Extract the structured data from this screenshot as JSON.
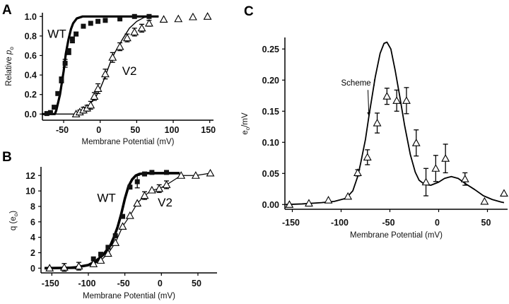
{
  "chart_data": [
    {
      "panel": "A",
      "type": "scatter",
      "xlabel": "Membrane Potential (mV)",
      "ylabel": {
        "main": "Relative ",
        "var": "p",
        "sub": "o"
      },
      "xlim": [
        -80,
        155
      ],
      "ylim": [
        0,
        1.05
      ],
      "xticks": [
        -50,
        0,
        50,
        100,
        150
      ],
      "yticks": [
        "0.0",
        "0.2",
        "0.4",
        "0.6",
        "0.8",
        "1.0"
      ],
      "annotations": [
        {
          "text": "WT",
          "x": -72,
          "y": 0.78
        },
        {
          "text": "V2",
          "x": 30,
          "y": 0.4
        }
      ],
      "series": [
        {
          "name": "WT",
          "marker": "filled-square",
          "x": [
            -73,
            -68,
            -63,
            -58,
            -53,
            -48,
            -43,
            -38,
            -33,
            -23,
            -13,
            -3,
            7,
            27,
            47,
            67
          ],
          "y": [
            0.005,
            0.015,
            0.07,
            0.21,
            0.35,
            0.52,
            0.64,
            0.76,
            0.82,
            0.9,
            0.93,
            0.95,
            0.96,
            0.975,
            1.0,
            1.0
          ],
          "err": [
            0,
            0,
            0,
            0,
            0.03,
            0.04,
            0.03,
            0.03,
            0.02,
            0,
            0,
            0,
            0,
            0,
            0,
            0
          ],
          "fit": [
            [
              -80,
              0
            ],
            [
              -62,
              0
            ],
            [
              -60,
              0.04
            ],
            [
              -55,
              0.2
            ],
            [
              -50,
              0.44
            ],
            [
              -47,
              0.62
            ],
            [
              -43.5,
              0.76
            ],
            [
              -40,
              0.87
            ],
            [
              -37,
              0.93
            ],
            [
              -32,
              0.98
            ],
            [
              -24,
              1.0
            ],
            [
              80,
              1.0
            ]
          ]
        },
        {
          "name": "V2",
          "marker": "open-triangle",
          "x": [
            -33,
            -28,
            -23,
            -18,
            -13,
            -8,
            -3,
            7,
            17,
            27,
            37,
            47,
            57,
            67,
            87,
            107,
            127,
            147
          ],
          "y": [
            0.0,
            0.02,
            0.04,
            0.06,
            0.09,
            0.18,
            0.26,
            0.41,
            0.58,
            0.69,
            0.78,
            0.84,
            0.88,
            0.93,
            0.97,
            0.975,
            0.995,
            1.0
          ],
          "err": [
            0,
            0.02,
            0.03,
            0.03,
            0.04,
            0.04,
            0.05,
            0.05,
            0.05,
            0.04,
            0.04,
            0.04,
            0.04,
            0.03,
            0,
            0,
            0,
            0
          ],
          "fit": [
            [
              -80,
              0
            ],
            [
              -35,
              0
            ],
            [
              -25,
              0.03
            ],
            [
              -15,
              0.09
            ],
            [
              -5,
              0.19
            ],
            [
              0,
              0.26
            ],
            [
              5,
              0.35
            ],
            [
              10,
              0.45
            ],
            [
              15,
              0.55
            ],
            [
              20,
              0.63
            ],
            [
              25,
              0.69
            ],
            [
              30,
              0.76
            ],
            [
              40,
              0.88
            ],
            [
              50,
              0.95
            ],
            [
              60,
              0.99
            ],
            [
              70,
              1.0
            ],
            [
              80,
              1.0
            ]
          ]
        }
      ]
    },
    {
      "panel": "B",
      "type": "scatter",
      "xlabel": "Membrane Potential (mV)",
      "ylabel": {
        "main": "q (e",
        "sub": "o",
        "end": ")"
      },
      "xlim": [
        -165,
        75
      ],
      "ylim": [
        0,
        13
      ],
      "xticks": [
        -150,
        -100,
        -50,
        0,
        50
      ],
      "yticks": [
        "0",
        "2",
        "4",
        "6",
        "8",
        "10",
        "12"
      ],
      "annotations": [
        {
          "text": "WT",
          "x": -88,
          "y": 8.6
        },
        {
          "text": "V2",
          "x": -5,
          "y": 8.0
        }
      ],
      "series": [
        {
          "name": "WT",
          "marker": "filled-square",
          "x": [
            -93,
            -83,
            -73,
            -63,
            -53,
            -43,
            -33,
            -23,
            -13,
            7
          ],
          "y": [
            1.2,
            1.8,
            2.7,
            4.2,
            6.7,
            10.5,
            11.2,
            12.2,
            12.4,
            12.4
          ],
          "err": [
            0,
            0,
            0,
            0,
            0,
            0,
            0.8,
            0,
            0,
            0
          ],
          "fit": [
            [
              -160,
              0
            ],
            [
              -120,
              0.05
            ],
            [
              -100,
              0.4
            ],
            [
              -90,
              0.9
            ],
            [
              -80,
              1.7
            ],
            [
              -70,
              2.9
            ],
            [
              -65,
              4.0
            ],
            [
              -60,
              5.3
            ],
            [
              -55,
              7.0
            ],
            [
              -50,
              9.0
            ],
            [
              -45,
              10.6
            ],
            [
              -40,
              11.5
            ],
            [
              -35,
              12.0
            ],
            [
              -30,
              12.2
            ],
            [
              -20,
              12.3
            ],
            [
              25,
              12.3
            ]
          ]
        },
        {
          "name": "V2",
          "marker": "open-triangle",
          "x": [
            -153,
            -133,
            -113,
            -93,
            -83,
            -73,
            -63,
            -53,
            -43,
            -33,
            -23,
            -13,
            -3,
            7,
            27,
            47,
            67
          ],
          "y": [
            0,
            0.1,
            0.25,
            0.55,
            1.0,
            1.9,
            3.3,
            5.4,
            6.8,
            8.4,
            9.4,
            10.1,
            10.3,
            10.8,
            12.0,
            12.0,
            12.3
          ],
          "err": [
            0,
            0.5,
            0.5,
            0,
            0,
            0,
            0,
            0,
            0,
            0,
            0.5,
            0,
            0.5,
            0.5,
            0,
            0,
            0
          ],
          "fit": "connect"
        }
      ]
    },
    {
      "panel": "C",
      "type": "scatter",
      "xlabel": "Membrane Potential (mV)",
      "ylabel": {
        "main": "e",
        "sub": "o",
        "end": "/mV"
      },
      "xlim": [
        -160,
        70
      ],
      "ylim": [
        0,
        0.27
      ],
      "xticks": [
        -150,
        -100,
        -50,
        0,
        50
      ],
      "yticks": [
        "0.00",
        "0.05",
        "0.10",
        "0.15",
        "0.20",
        "0.25"
      ],
      "annotations": [
        {
          "text": "Scheme I",
          "x": -100,
          "y": 0.191,
          "arrow_to": [
            -71.5,
            0.142
          ]
        }
      ],
      "series": [
        {
          "marker": "open-triangle",
          "x": [
            -153,
            -133,
            -113,
            -93,
            -83,
            -73,
            -63,
            -53,
            -43,
            -33,
            -23,
            -13,
            -3,
            7,
            27,
            47,
            67
          ],
          "y": [
            0.0,
            0.002,
            0.007,
            0.013,
            0.051,
            0.076,
            0.131,
            0.174,
            0.167,
            0.167,
            0.099,
            0.036,
            0.058,
            0.074,
            0.041,
            0.005,
            0.018
          ],
          "err": [
            0,
            0,
            0,
            0,
            0.005,
            0.012,
            0.016,
            0.013,
            0.017,
            0.021,
            0.021,
            0.022,
            0.021,
            0.023,
            0.01,
            0,
            0
          ]
        },
        {
          "name": "Scheme I",
          "marker": "none",
          "x": [],
          "y": [],
          "err": [],
          "fit": [
            [
              -157,
              0
            ],
            [
              -140,
              0.001
            ],
            [
              -120,
              0.003
            ],
            [
              -107,
              0.005
            ],
            [
              -95,
              0.01
            ],
            [
              -88,
              0.022
            ],
            [
              -83,
              0.045
            ],
            [
              -80,
              0.066
            ],
            [
              -75,
              0.105
            ],
            [
              -71.5,
              0.142
            ],
            [
              -65,
              0.205
            ],
            [
              -60,
              0.243
            ],
            [
              -56,
              0.259
            ],
            [
              -53,
              0.261
            ],
            [
              -49,
              0.25
            ],
            [
              -44.5,
              0.215
            ],
            [
              -40,
              0.175
            ],
            [
              -35,
              0.128
            ],
            [
              -29,
              0.08
            ],
            [
              -24,
              0.052
            ],
            [
              -20,
              0.039
            ],
            [
              -14,
              0.032
            ],
            [
              -8,
              0.031
            ],
            [
              0,
              0.036
            ],
            [
              6,
              0.042
            ],
            [
              13,
              0.045
            ],
            [
              20,
              0.042
            ],
            [
              28,
              0.033
            ],
            [
              37,
              0.024
            ],
            [
              46,
              0.014
            ],
            [
              55,
              0.008
            ],
            [
              64,
              0.004
            ],
            [
              67,
              0.003
            ]
          ]
        }
      ]
    }
  ]
}
